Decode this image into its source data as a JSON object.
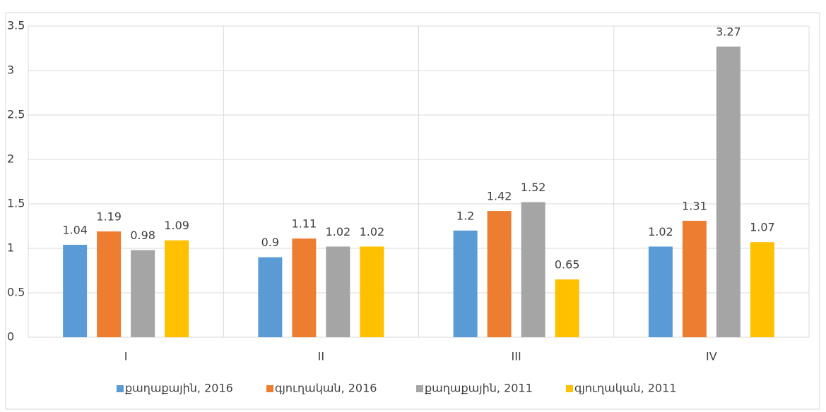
{
  "chart_data": {
    "type": "bar",
    "categories": [
      "I",
      "II",
      "III",
      "IV"
    ],
    "series": [
      {
        "name": "քաղաքային, 2016",
        "color": "#5b9bd5",
        "values": [
          1.04,
          0.9,
          1.2,
          1.02
        ]
      },
      {
        "name": "գյուղական, 2016",
        "color": "#ed7d31",
        "values": [
          1.19,
          1.11,
          1.42,
          1.31
        ]
      },
      {
        "name": "քաղաքային, 2011",
        "color": "#a5a5a5",
        "values": [
          0.98,
          1.02,
          1.52,
          3.27
        ]
      },
      {
        "name": "գյուղական, 2011",
        "color": "#ffc000",
        "values": [
          1.09,
          1.02,
          0.65,
          1.07
        ]
      }
    ],
    "ylim": [
      0,
      3.5
    ],
    "yticks": [
      0,
      0.5,
      1,
      1.5,
      2,
      2.5,
      3,
      3.5
    ],
    "grid": true,
    "legend": "bottom"
  }
}
